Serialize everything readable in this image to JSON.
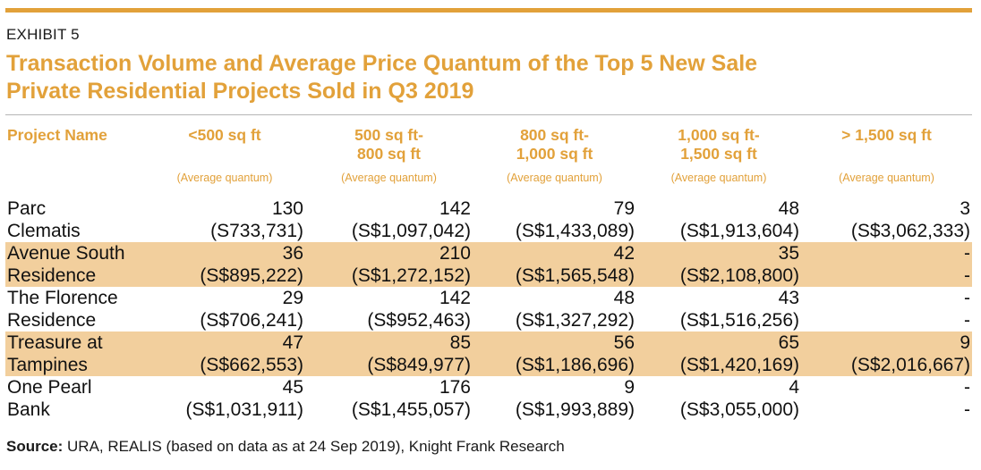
{
  "exhibit_label": "EXHIBIT 5",
  "title_line1": "Transaction Volume and Average Price Quantum of the Top 5 New Sale",
  "title_line2": "Private Residential Projects Sold in Q3 2019",
  "colors": {
    "accent": "#e2a13a",
    "row_shade": "#f2cf9d",
    "rule": "#b5b5b5"
  },
  "columns": [
    {
      "label_line1": "Project Name",
      "label_line2": "",
      "sub": ""
    },
    {
      "label_line1": "<500 sq ft",
      "label_line2": "",
      "sub": "(Average quantum)"
    },
    {
      "label_line1": "500 sq ft-",
      "label_line2": "800 sq ft",
      "sub": "(Average quantum)"
    },
    {
      "label_line1": "800 sq ft-",
      "label_line2": "1,000 sq ft",
      "sub": "(Average quantum)"
    },
    {
      "label_line1": "1,000 sq ft-",
      "label_line2": "1,500 sq ft",
      "sub": "(Average quantum)"
    },
    {
      "label_line1": "> 1,500 sq ft",
      "label_line2": "",
      "sub": "(Average quantum)"
    }
  ],
  "rows": [
    {
      "name_line1": "Parc",
      "name_line2": "Clematis",
      "volumes": [
        "130",
        "142",
        "79",
        "48",
        "3"
      ],
      "quantums": [
        "(S733,731)",
        "(S$1,097,042)",
        "(S$1,433,089)",
        "(S$1,913,604)",
        "(S$3,062,333)"
      ]
    },
    {
      "name_line1": "Avenue South",
      "name_line2": "Residence",
      "volumes": [
        "36",
        "210",
        "42",
        "35",
        "-"
      ],
      "quantums": [
        "(S$895,222)",
        "(S$1,272,152)",
        "(S$1,565,548)",
        "(S$2,108,800)",
        "-"
      ]
    },
    {
      "name_line1": "The Florence",
      "name_line2": "Residence",
      "volumes": [
        "29",
        "142",
        "48",
        "43",
        "-"
      ],
      "quantums": [
        "(S$706,241)",
        "(S$952,463)",
        "(S$1,327,292)",
        "(S$1,516,256)",
        "-"
      ]
    },
    {
      "name_line1": "Treasure at",
      "name_line2": "Tampines",
      "volumes": [
        "47",
        "85",
        "56",
        "65",
        "9"
      ],
      "quantums": [
        "(S$662,553)",
        "(S$849,977)",
        "(S$1,186,696)",
        "(S$1,420,169)",
        "(S$2,016,667)"
      ]
    },
    {
      "name_line1": "One Pearl",
      "name_line2": "Bank",
      "volumes": [
        "45",
        "176",
        "9",
        "4",
        "-"
      ],
      "quantums": [
        "(S$1,031,911)",
        "(S$1,455,057)",
        "(S$1,993,889)",
        "(S$3,055,000)",
        "-"
      ]
    }
  ],
  "source_label": "Source:",
  "source_text": " URA, REALIS (based on data as at 24 Sep 2019), Knight Frank Research"
}
